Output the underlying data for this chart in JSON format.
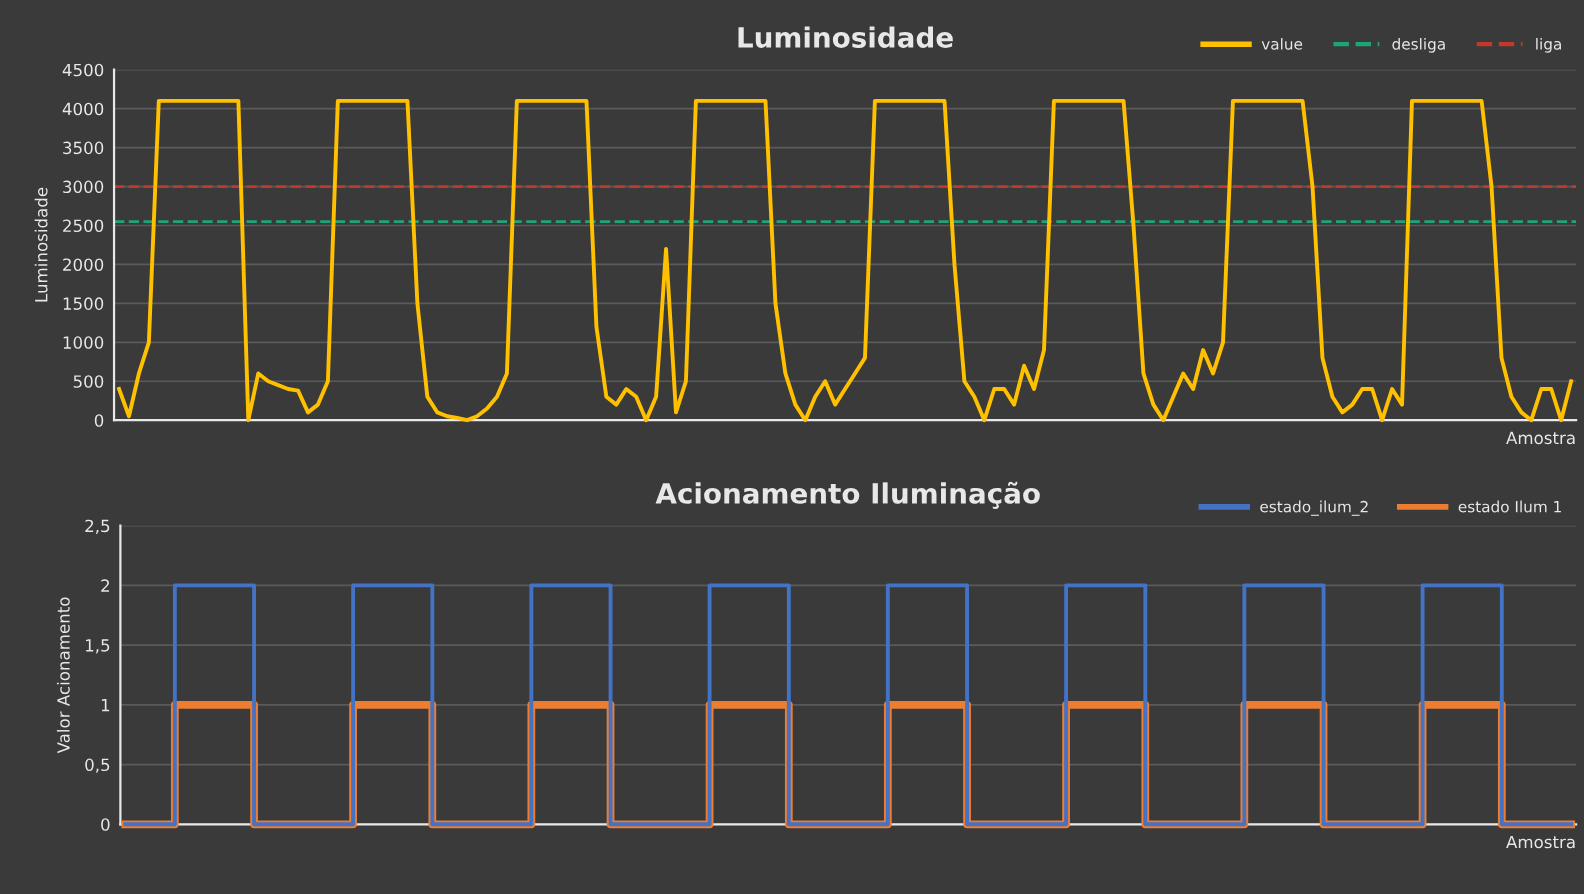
{
  "chart_data": [
    {
      "type": "line",
      "title": "Luminosidade",
      "ylabel": "Luminosidade",
      "xlabel": "Amostra",
      "categories": [
        null,
        null,
        null,
        null,
        null,
        null,
        null,
        null,
        null,
        null,
        null,
        null,
        null,
        null,
        null,
        null,
        null,
        null,
        null,
        null,
        null,
        null,
        null,
        null,
        null,
        null,
        null,
        null,
        null,
        null,
        null,
        null,
        null,
        null,
        null,
        null,
        null,
        null,
        null,
        null,
        null,
        null,
        null,
        null,
        null,
        null,
        null,
        null,
        null,
        null,
        null,
        null,
        null,
        null,
        null,
        null,
        null,
        null,
        null,
        null,
        null,
        null,
        null,
        null,
        null,
        null,
        null,
        null,
        null,
        null,
        null,
        null,
        null,
        null,
        null,
        null,
        null,
        null,
        null,
        null,
        null,
        null,
        null,
        null,
        null,
        null,
        null,
        null,
        null,
        null,
        null,
        null,
        null,
        null,
        null,
        null,
        null,
        null,
        null,
        null,
        null,
        null,
        null,
        null,
        null,
        null,
        null,
        null,
        null,
        null,
        null,
        null,
        null,
        null,
        null,
        null,
        null,
        null,
        null,
        null,
        null,
        null,
        null,
        null,
        null,
        null,
        null,
        null,
        null,
        null,
        null,
        null,
        null,
        null,
        null,
        null,
        null,
        null,
        null,
        null,
        null,
        null,
        null,
        null,
        null,
        null,
        null
      ],
      "series": [
        {
          "name": "value",
          "color": "#ffc000",
          "values": [
            400,
            50,
            600,
            1000,
            4100,
            4100,
            4100,
            4100,
            4100,
            4100,
            4100,
            4100,
            4100,
            0,
            600,
            500,
            450,
            400,
            380,
            100,
            200,
            500,
            4100,
            4100,
            4100,
            4100,
            4100,
            4100,
            4100,
            4100,
            1500,
            300,
            100,
            50,
            30,
            0,
            50,
            150,
            300,
            600,
            4100,
            4100,
            4100,
            4100,
            4100,
            4100,
            4100,
            4100,
            1200,
            300,
            200,
            400,
            300,
            0,
            300,
            2200,
            100,
            500,
            4100,
            4100,
            4100,
            4100,
            4100,
            4100,
            4100,
            4100,
            1500,
            600,
            200,
            0,
            300,
            500,
            200,
            400,
            600,
            800,
            4100,
            4100,
            4100,
            4100,
            4100,
            4100,
            4100,
            4100,
            2000,
            500,
            300,
            0,
            400,
            400,
            200,
            700,
            400,
            900,
            4100,
            4100,
            4100,
            4100,
            4100,
            4100,
            4100,
            4100,
            2500,
            600,
            200,
            0,
            300,
            600,
            400,
            900,
            600,
            1000,
            4100,
            4100,
            4100,
            4100,
            4100,
            4100,
            4100,
            4100,
            3000,
            800,
            300,
            100,
            200,
            400,
            400,
            0,
            400,
            200,
            4100,
            4100,
            4100,
            4100,
            4100,
            4100,
            4100,
            4100,
            3000,
            800,
            300,
            100,
            0,
            400,
            400,
            0,
            500
          ]
        }
      ],
      "ref_lines": [
        {
          "axis": "y",
          "value": 2550,
          "label": "desliga",
          "color": "#1fa37a",
          "line_style": "dashed"
        },
        {
          "axis": "y",
          "value": 3000,
          "label": "liga",
          "color": "#c0392b",
          "line_style": "dashed"
        }
      ],
      "ylim": [
        0,
        4500
      ],
      "yticks": [
        0,
        500,
        1000,
        1500,
        2000,
        2500,
        3000,
        3500,
        4000,
        4500
      ],
      "grid": "y",
      "legend": "top right",
      "tick_labels": "y"
    },
    {
      "type": "step",
      "title": "Acionamento Iluminação",
      "ylabel": "Valor Acionamento",
      "xlabel": "Amostra",
      "categories": [
        null,
        null,
        null,
        null,
        null,
        null,
        null,
        null,
        null,
        null,
        null,
        null,
        null,
        null,
        null,
        null,
        null,
        null,
        null,
        null,
        null,
        null,
        null,
        null,
        null,
        null,
        null,
        null,
        null,
        null,
        null,
        null,
        null,
        null,
        null,
        null,
        null,
        null,
        null,
        null,
        null,
        null,
        null,
        null,
        null,
        null,
        null,
        null,
        null,
        null,
        null,
        null,
        null,
        null,
        null,
        null,
        null,
        null,
        null,
        null,
        null,
        null,
        null,
        null,
        null,
        null,
        null,
        null,
        null,
        null,
        null,
        null,
        null,
        null,
        null,
        null,
        null,
        null,
        null,
        null,
        null,
        null,
        null,
        null,
        null,
        null,
        null,
        null,
        null,
        null,
        null,
        null,
        null,
        null,
        null,
        null,
        null,
        null,
        null,
        null,
        null,
        null,
        null,
        null,
        null,
        null,
        null,
        null,
        null,
        null,
        null,
        null,
        null,
        null,
        null,
        null,
        null,
        null,
        null,
        null,
        null,
        null,
        null,
        null,
        null,
        null,
        null,
        null,
        null,
        null,
        null,
        null,
        null,
        null,
        null,
        null,
        null,
        null,
        null,
        null,
        null,
        null,
        null,
        null,
        null,
        null,
        null
      ],
      "series": [
        {
          "name": "estado_ilum_2",
          "color": "#4472c4",
          "values": [
            0,
            0,
            0,
            0,
            0,
            2,
            2,
            2,
            2,
            2,
            2,
            2,
            2,
            0,
            0,
            0,
            0,
            0,
            0,
            0,
            0,
            0,
            0,
            2,
            2,
            2,
            2,
            2,
            2,
            2,
            2,
            0,
            0,
            0,
            0,
            0,
            0,
            0,
            0,
            0,
            0,
            2,
            2,
            2,
            2,
            2,
            2,
            2,
            2,
            0,
            0,
            0,
            0,
            0,
            0,
            0,
            0,
            0,
            0,
            2,
            2,
            2,
            2,
            2,
            2,
            2,
            2,
            0,
            0,
            0,
            0,
            0,
            0,
            0,
            0,
            0,
            0,
            2,
            2,
            2,
            2,
            2,
            2,
            2,
            2,
            0,
            0,
            0,
            0,
            0,
            0,
            0,
            0,
            0,
            0,
            2,
            2,
            2,
            2,
            2,
            2,
            2,
            2,
            0,
            0,
            0,
            0,
            0,
            0,
            0,
            0,
            0,
            0,
            2,
            2,
            2,
            2,
            2,
            2,
            2,
            2,
            0,
            0,
            0,
            0,
            0,
            0,
            0,
            0,
            0,
            0,
            2,
            2,
            2,
            2,
            2,
            2,
            2,
            2,
            0,
            0,
            0,
            0,
            0,
            0,
            0,
            0
          ]
        },
        {
          "name": "estado Ilum 1",
          "color": "#ed7d31",
          "values": [
            0,
            0,
            0,
            0,
            0,
            1,
            1,
            1,
            1,
            1,
            1,
            1,
            1,
            0,
            0,
            0,
            0,
            0,
            0,
            0,
            0,
            0,
            0,
            1,
            1,
            1,
            1,
            1,
            1,
            1,
            1,
            0,
            0,
            0,
            0,
            0,
            0,
            0,
            0,
            0,
            0,
            1,
            1,
            1,
            1,
            1,
            1,
            1,
            1,
            0,
            0,
            0,
            0,
            0,
            0,
            0,
            0,
            0,
            0,
            1,
            1,
            1,
            1,
            1,
            1,
            1,
            1,
            0,
            0,
            0,
            0,
            0,
            0,
            0,
            0,
            0,
            0,
            1,
            1,
            1,
            1,
            1,
            1,
            1,
            1,
            0,
            0,
            0,
            0,
            0,
            0,
            0,
            0,
            0,
            0,
            1,
            1,
            1,
            1,
            1,
            1,
            1,
            1,
            0,
            0,
            0,
            0,
            0,
            0,
            0,
            0,
            0,
            0,
            1,
            1,
            1,
            1,
            1,
            1,
            1,
            1,
            0,
            0,
            0,
            0,
            0,
            0,
            0,
            0,
            0,
            0,
            1,
            1,
            1,
            1,
            1,
            1,
            1,
            1,
            0,
            0,
            0,
            0,
            0,
            0,
            0,
            0
          ]
        }
      ],
      "ylim": [
        0,
        2.5
      ],
      "yticks": [
        0,
        {
          "value": 0.5,
          "label": "0,5"
        },
        1,
        {
          "value": 1.5,
          "label": "1,5"
        },
        2,
        {
          "value": 2.5,
          "label": "2,5"
        }
      ],
      "grid": "y",
      "legend": "top right",
      "tick_labels": "y"
    }
  ]
}
